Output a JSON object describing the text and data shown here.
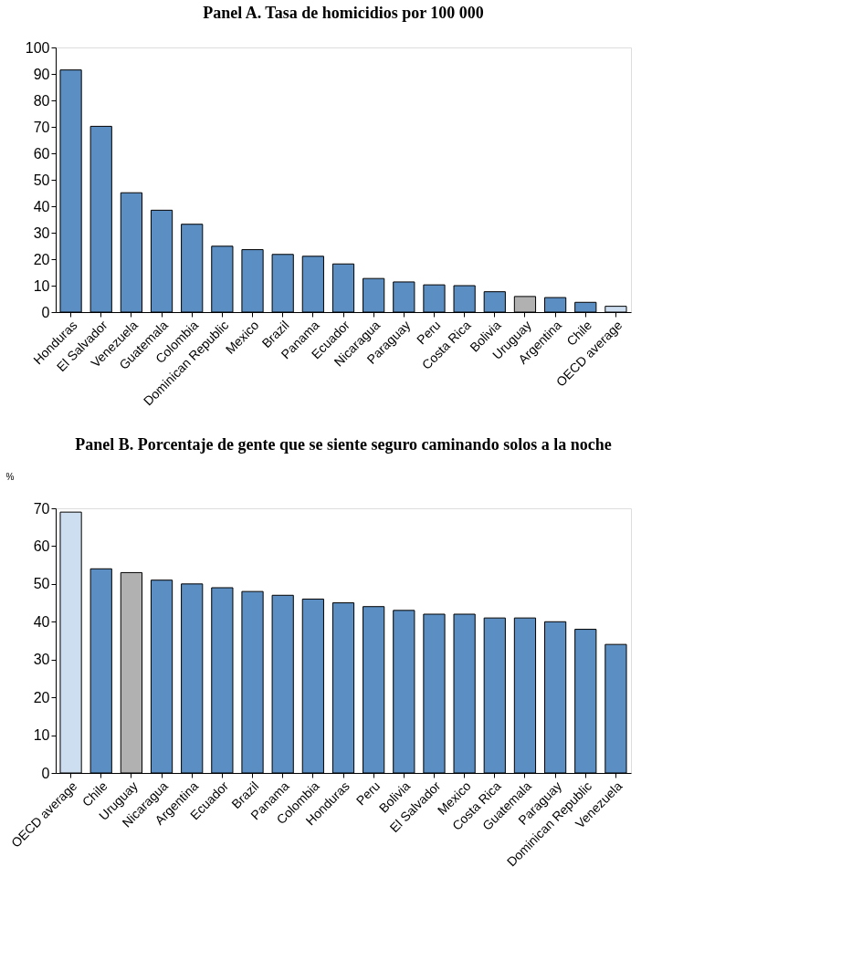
{
  "chart_data": [
    {
      "type": "bar",
      "title": "Panel A. Tasa de homicidios por 100 000",
      "categories": [
        "Honduras",
        "El Salvador",
        "Venezuela",
        "Guatemala",
        "Colombia",
        "Dominican Republic",
        "Mexico",
        "Brazil",
        "Panama",
        "Ecuador",
        "Nicaragua",
        "Paraguay",
        "Peru",
        "Costa Rica",
        "Bolivia",
        "Uruguay",
        "Argentina",
        "Chile",
        "OECD average"
      ],
      "values": [
        91.5,
        70.2,
        45.1,
        38.5,
        33.2,
        24.9,
        23.6,
        21.8,
        21.1,
        18.2,
        12.7,
        11.4,
        10.3,
        10.0,
        7.7,
        5.9,
        5.5,
        3.7,
        2.2
      ],
      "colors": [
        "#5b8ec2",
        "#5b8ec2",
        "#5b8ec2",
        "#5b8ec2",
        "#5b8ec2",
        "#5b8ec2",
        "#5b8ec2",
        "#5b8ec2",
        "#5b8ec2",
        "#5b8ec2",
        "#5b8ec2",
        "#5b8ec2",
        "#5b8ec2",
        "#5b8ec2",
        "#5b8ec2",
        "#b1b1b1",
        "#5b8ec2",
        "#5b8ec2",
        "#cddef0"
      ],
      "ylim": [
        0,
        100
      ],
      "yticks": [
        0,
        10,
        20,
        30,
        40,
        50,
        60,
        70,
        80,
        90,
        100
      ],
      "grid": false
    },
    {
      "type": "bar",
      "title": "Panel B. Porcentaje de gente que se siente seguro caminando solos a la noche",
      "ylabel": "%",
      "categories": [
        "OECD average",
        "Chile",
        "Uruguay",
        "Nicaragua",
        "Argentina",
        "Ecuador",
        "Brazil",
        "Panama",
        "Colombia",
        "Honduras",
        "Peru",
        "Bolivia",
        "El Salvador",
        "Mexico",
        "Costa Rica",
        "Guatemala",
        "Paraguay",
        "Dominican Republic",
        "Venezuela"
      ],
      "values": [
        69,
        54,
        53,
        51,
        50,
        49,
        48,
        47,
        46,
        45,
        44,
        43,
        42,
        42,
        41,
        41,
        40,
        38,
        34
      ],
      "colors": [
        "#cddef0",
        "#5b8ec2",
        "#b1b1b1",
        "#5b8ec2",
        "#5b8ec2",
        "#5b8ec2",
        "#5b8ec2",
        "#5b8ec2",
        "#5b8ec2",
        "#5b8ec2",
        "#5b8ec2",
        "#5b8ec2",
        "#5b8ec2",
        "#5b8ec2",
        "#5b8ec2",
        "#5b8ec2",
        "#5b8ec2",
        "#5b8ec2",
        "#5b8ec2"
      ],
      "ylim": [
        0,
        70
      ],
      "yticks": [
        0,
        10,
        20,
        30,
        40,
        50,
        60,
        70
      ],
      "grid": false
    }
  ]
}
